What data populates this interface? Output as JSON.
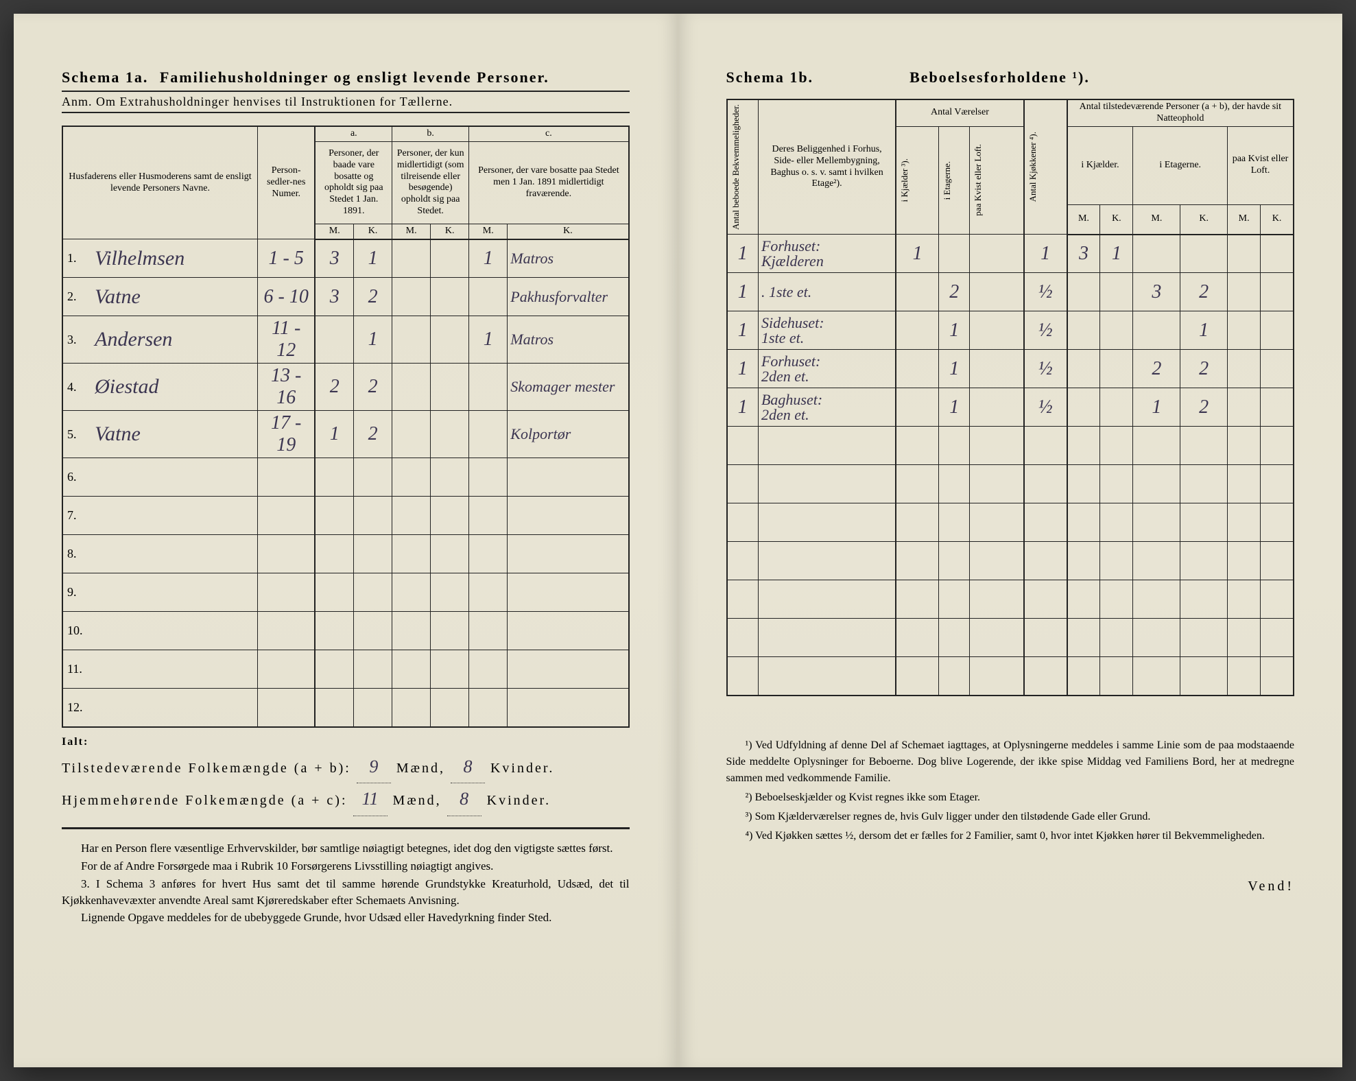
{
  "left": {
    "title_a": "Schema 1a.",
    "title_b": "Familiehusholdninger og ensligt levende Personer.",
    "anm": "Anm. Om Extrahusholdninger henvises til Instruktionen for Tællerne.",
    "headers": {
      "names": "Husfaderens eller Husmoderens samt de ensligt levende Personers Navne.",
      "numer": "Person-sedler-nes Numer.",
      "a_label": "a.",
      "a": "Personer, der baade vare bosatte og opholdt sig paa Stedet 1 Jan. 1891.",
      "b_label": "b.",
      "b": "Personer, der kun midlertidigt (som tilreisende eller besøgende) opholdt sig paa Stedet.",
      "c_label": "c.",
      "c": "Personer, der vare bosatte paa Stedet men 1 Jan. 1891 midlertidigt fraværende.",
      "m": "M.",
      "k": "K."
    },
    "rows": [
      {
        "n": "1.",
        "name": "Vilhelmsen",
        "num": "1 - 5",
        "am": "3",
        "ak": "1",
        "bm": "",
        "bk": "",
        "cm": "1",
        "ck": "Matros"
      },
      {
        "n": "2.",
        "name": "Vatne",
        "num": "6 - 10",
        "am": "3",
        "ak": "2",
        "bm": "",
        "bk": "",
        "cm": "",
        "ck": "Pakhusforvalter"
      },
      {
        "n": "3.",
        "name": "Andersen",
        "num": "11 - 12",
        "am": "",
        "ak": "1",
        "bm": "",
        "bk": "",
        "cm": "1",
        "ck": "Matros"
      },
      {
        "n": "4.",
        "name": "Øiestad",
        "num": "13 - 16",
        "am": "2",
        "ak": "2",
        "bm": "",
        "bk": "",
        "cm": "",
        "ck": "Skomager mester"
      },
      {
        "n": "5.",
        "name": "Vatne",
        "num": "17 - 19",
        "am": "1",
        "ak": "2",
        "bm": "",
        "bk": "",
        "cm": "",
        "ck": "Kolportør"
      },
      {
        "n": "6.",
        "name": "",
        "num": "",
        "am": "",
        "ak": "",
        "bm": "",
        "bk": "",
        "cm": "",
        "ck": ""
      },
      {
        "n": "7.",
        "name": "",
        "num": "",
        "am": "",
        "ak": "",
        "bm": "",
        "bk": "",
        "cm": "",
        "ck": ""
      },
      {
        "n": "8.",
        "name": "",
        "num": "",
        "am": "",
        "ak": "",
        "bm": "",
        "bk": "",
        "cm": "",
        "ck": ""
      },
      {
        "n": "9.",
        "name": "",
        "num": "",
        "am": "",
        "ak": "",
        "bm": "",
        "bk": "",
        "cm": "",
        "ck": ""
      },
      {
        "n": "10.",
        "name": "",
        "num": "",
        "am": "",
        "ak": "",
        "bm": "",
        "bk": "",
        "cm": "",
        "ck": ""
      },
      {
        "n": "11.",
        "name": "",
        "num": "",
        "am": "",
        "ak": "",
        "bm": "",
        "bk": "",
        "cm": "",
        "ck": ""
      },
      {
        "n": "12.",
        "name": "",
        "num": "",
        "am": "",
        "ak": "",
        "bm": "",
        "bk": "",
        "cm": "",
        "ck": ""
      }
    ],
    "ialt": "Ialt:",
    "tot1_label": "Tilstedeværende Folkemængde (a + b):",
    "tot1_m": "9",
    "tot1_k": "8",
    "tot2_label": "Hjemmehørende Folkemængde (a + c):",
    "tot2_m": "11",
    "tot2_k": "8",
    "maend": "Mænd,",
    "kvinder": "Kvinder.",
    "notes": [
      "Har en Person flere væsentlige Erhvervskilder, bør samtlige nøiagtigt betegnes, idet dog den vigtigste sættes først.",
      "For de af Andre Forsørgede maa i Rubrik 10 Forsørgerens Livsstilling nøiagtigt angives.",
      "3. I Schema 3 anføres for hvert Hus samt det til samme hørende Grundstykke Kreaturhold, Udsæd, det til Kjøkkenhavevæxter anvendte Areal samt Kjøreredskaber efter Schemaets Anvisning.",
      "Lignende Opgave meddeles for de ubebyggede Grunde, hvor Udsæd eller Havedyrkning finder Sted."
    ]
  },
  "right": {
    "title_a": "Schema 1b.",
    "title_b": "Beboelsesforholdene ¹).",
    "headers": {
      "bekv": "Antal beboede Bekvemmeligheder.",
      "loc": "Deres Beliggenhed i Forhus, Side- eller Mellembygning, Baghus o. s. v. samt i hvilken Etage²).",
      "antalv": "Antal Værelser",
      "kjael": "i Kjælder ³).",
      "etag": "i Etagerne.",
      "kvist": "paa Kvist eller Loft.",
      "kjok": "Antal Kjøkkener ⁴).",
      "tilst": "Antal tilstedeværende Personer (a + b), der havde sit Natteophold",
      "ikj": "i Kjælder.",
      "iet": "i Etagerne.",
      "paak": "paa Kvist eller Loft.",
      "m": "M.",
      "k": "K."
    },
    "rows": [
      {
        "b": "1",
        "loc": "Forhuset:\nKjælderen",
        "kj": "1",
        "et": "",
        "kv": "",
        "ko": "1",
        "km": "3",
        "kk": "1",
        "em": "",
        "ek": "",
        "pm": "",
        "pk": ""
      },
      {
        "b": "1",
        "loc": ". 1ste et.",
        "kj": "",
        "et": "2",
        "kv": "",
        "ko": "½",
        "km": "",
        "kk": "",
        "em": "3",
        "ek": "2",
        "pm": "",
        "pk": ""
      },
      {
        "b": "1",
        "loc": "Sidehuset:\n1ste et.",
        "kj": "",
        "et": "1",
        "kv": "",
        "ko": "½",
        "km": "",
        "kk": "",
        "em": "",
        "ek": "1",
        "pm": "",
        "pk": ""
      },
      {
        "b": "1",
        "loc": "Forhuset:\n2den et.",
        "kj": "",
        "et": "1",
        "kv": "",
        "ko": "½",
        "km": "",
        "kk": "",
        "em": "2",
        "ek": "2",
        "pm": "",
        "pk": ""
      },
      {
        "b": "1",
        "loc": "Baghuset:\n2den et.",
        "kj": "",
        "et": "1",
        "kv": "",
        "ko": "½",
        "km": "",
        "kk": "",
        "em": "1",
        "ek": "2",
        "pm": "",
        "pk": ""
      },
      {
        "b": "",
        "loc": "",
        "kj": "",
        "et": "",
        "kv": "",
        "ko": "",
        "km": "",
        "kk": "",
        "em": "",
        "ek": "",
        "pm": "",
        "pk": ""
      },
      {
        "b": "",
        "loc": "",
        "kj": "",
        "et": "",
        "kv": "",
        "ko": "",
        "km": "",
        "kk": "",
        "em": "",
        "ek": "",
        "pm": "",
        "pk": ""
      },
      {
        "b": "",
        "loc": "",
        "kj": "",
        "et": "",
        "kv": "",
        "ko": "",
        "km": "",
        "kk": "",
        "em": "",
        "ek": "",
        "pm": "",
        "pk": ""
      },
      {
        "b": "",
        "loc": "",
        "kj": "",
        "et": "",
        "kv": "",
        "ko": "",
        "km": "",
        "kk": "",
        "em": "",
        "ek": "",
        "pm": "",
        "pk": ""
      },
      {
        "b": "",
        "loc": "",
        "kj": "",
        "et": "",
        "kv": "",
        "ko": "",
        "km": "",
        "kk": "",
        "em": "",
        "ek": "",
        "pm": "",
        "pk": ""
      },
      {
        "b": "",
        "loc": "",
        "kj": "",
        "et": "",
        "kv": "",
        "ko": "",
        "km": "",
        "kk": "",
        "em": "",
        "ek": "",
        "pm": "",
        "pk": ""
      },
      {
        "b": "",
        "loc": "",
        "kj": "",
        "et": "",
        "kv": "",
        "ko": "",
        "km": "",
        "kk": "",
        "em": "",
        "ek": "",
        "pm": "",
        "pk": ""
      }
    ],
    "footnotes": [
      "¹) Ved Udfyldning af denne Del af Schemaet iagttages, at Oplysningerne meddeles i samme Linie som de paa modstaaende Side meddelte Oplysninger for Beboerne. Dog blive Logerende, der ikke spise Middag ved Familiens Bord, her at medregne sammen med vedkommende Familie.",
      "²) Beboelseskjælder og Kvist regnes ikke som Etager.",
      "³) Som Kjælderværelser regnes de, hvis Gulv ligger under den tilstødende Gade eller Grund.",
      "⁴) Ved Kjøkken sættes ½, dersom det er fælles for 2 Familier, samt 0, hvor intet Kjøkken hører til Bekvemmeligheden."
    ],
    "vend": "Vend!"
  }
}
